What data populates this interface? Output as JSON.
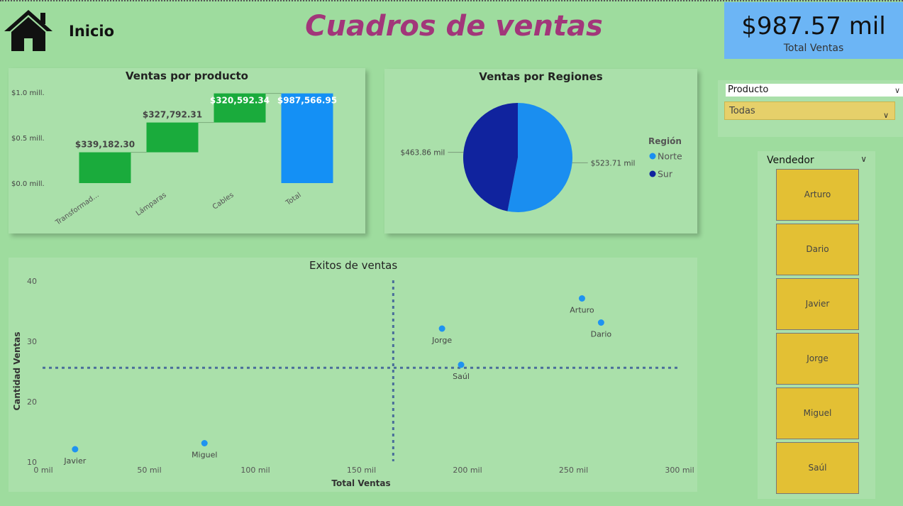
{
  "header": {
    "home_label": "Inicio",
    "title": "Cuadros de ventas",
    "kpi_value": "$987.57 mil",
    "kpi_label": "Total Ventas",
    "kpi_color": "#6cb5f5",
    "title_color": "#a2367a",
    "home_icon": "home-icon"
  },
  "filters": {
    "product_label": "Producto",
    "product_value": "Todas",
    "vendor_label": "Vendedor",
    "vendors": [
      "Arturo",
      "Dario",
      "Javier",
      "Jorge",
      "Miguel",
      "Saúl"
    ]
  },
  "chart_data": [
    {
      "type": "bar",
      "subtype": "waterfall",
      "title": "Ventas por producto",
      "categories": [
        "Transformad...",
        "Lámparas",
        "Cables",
        "Total"
      ],
      "values": [
        339182.3,
        327792.31,
        320592.34,
        987566.95
      ],
      "value_labels": [
        "$339,182.30",
        "$327,792.31",
        "$320,592.34",
        "$987,566.95"
      ],
      "ytick_labels": [
        "$0.0 mill.",
        "$0.5 mill.",
        "$1.0 mill."
      ],
      "yticks": [
        0,
        500000,
        1000000
      ],
      "ylim": [
        0,
        1000000
      ],
      "colors": {
        "increase": "#1aab3c",
        "total": "#1490f5"
      }
    },
    {
      "type": "pie",
      "title": "Ventas por Regiones",
      "legend_title": "Región",
      "legend_position": "right",
      "slices": [
        {
          "name": "Norte",
          "value": 523.71,
          "label": "$523.71 mil",
          "color": "#1a8ef0"
        },
        {
          "name": "Sur",
          "value": 463.86,
          "label": "$463.86 mil",
          "color": "#10239e"
        }
      ]
    },
    {
      "type": "scatter",
      "title": "Exitos de ventas",
      "xlabel": "Total Ventas",
      "ylabel": "Cantidad Ventas",
      "xlim": [
        0,
        300000
      ],
      "ylim": [
        10,
        40
      ],
      "xticks": [
        0,
        50000,
        100000,
        150000,
        200000,
        250000,
        300000
      ],
      "xtick_labels": [
        "0 mil",
        "50 mil",
        "100 mil",
        "150 mil",
        "200 mil",
        "250 mil",
        "300 mil"
      ],
      "yticks": [
        10,
        20,
        30,
        40
      ],
      "ytick_labels": [
        "10",
        "20",
        "30",
        "40"
      ],
      "ref_lines": {
        "x": 165000,
        "y": 25.5
      },
      "point_color": "#1f93f0",
      "points": [
        {
          "name": "Javier",
          "x": 15000,
          "y": 12
        },
        {
          "name": "Miguel",
          "x": 76000,
          "y": 13
        },
        {
          "name": "Jorge",
          "x": 188000,
          "y": 32
        },
        {
          "name": "Saúl",
          "x": 197000,
          "y": 26
        },
        {
          "name": "Arturo",
          "x": 254000,
          "y": 37
        },
        {
          "name": "Dario",
          "x": 263000,
          "y": 33
        }
      ]
    }
  ]
}
